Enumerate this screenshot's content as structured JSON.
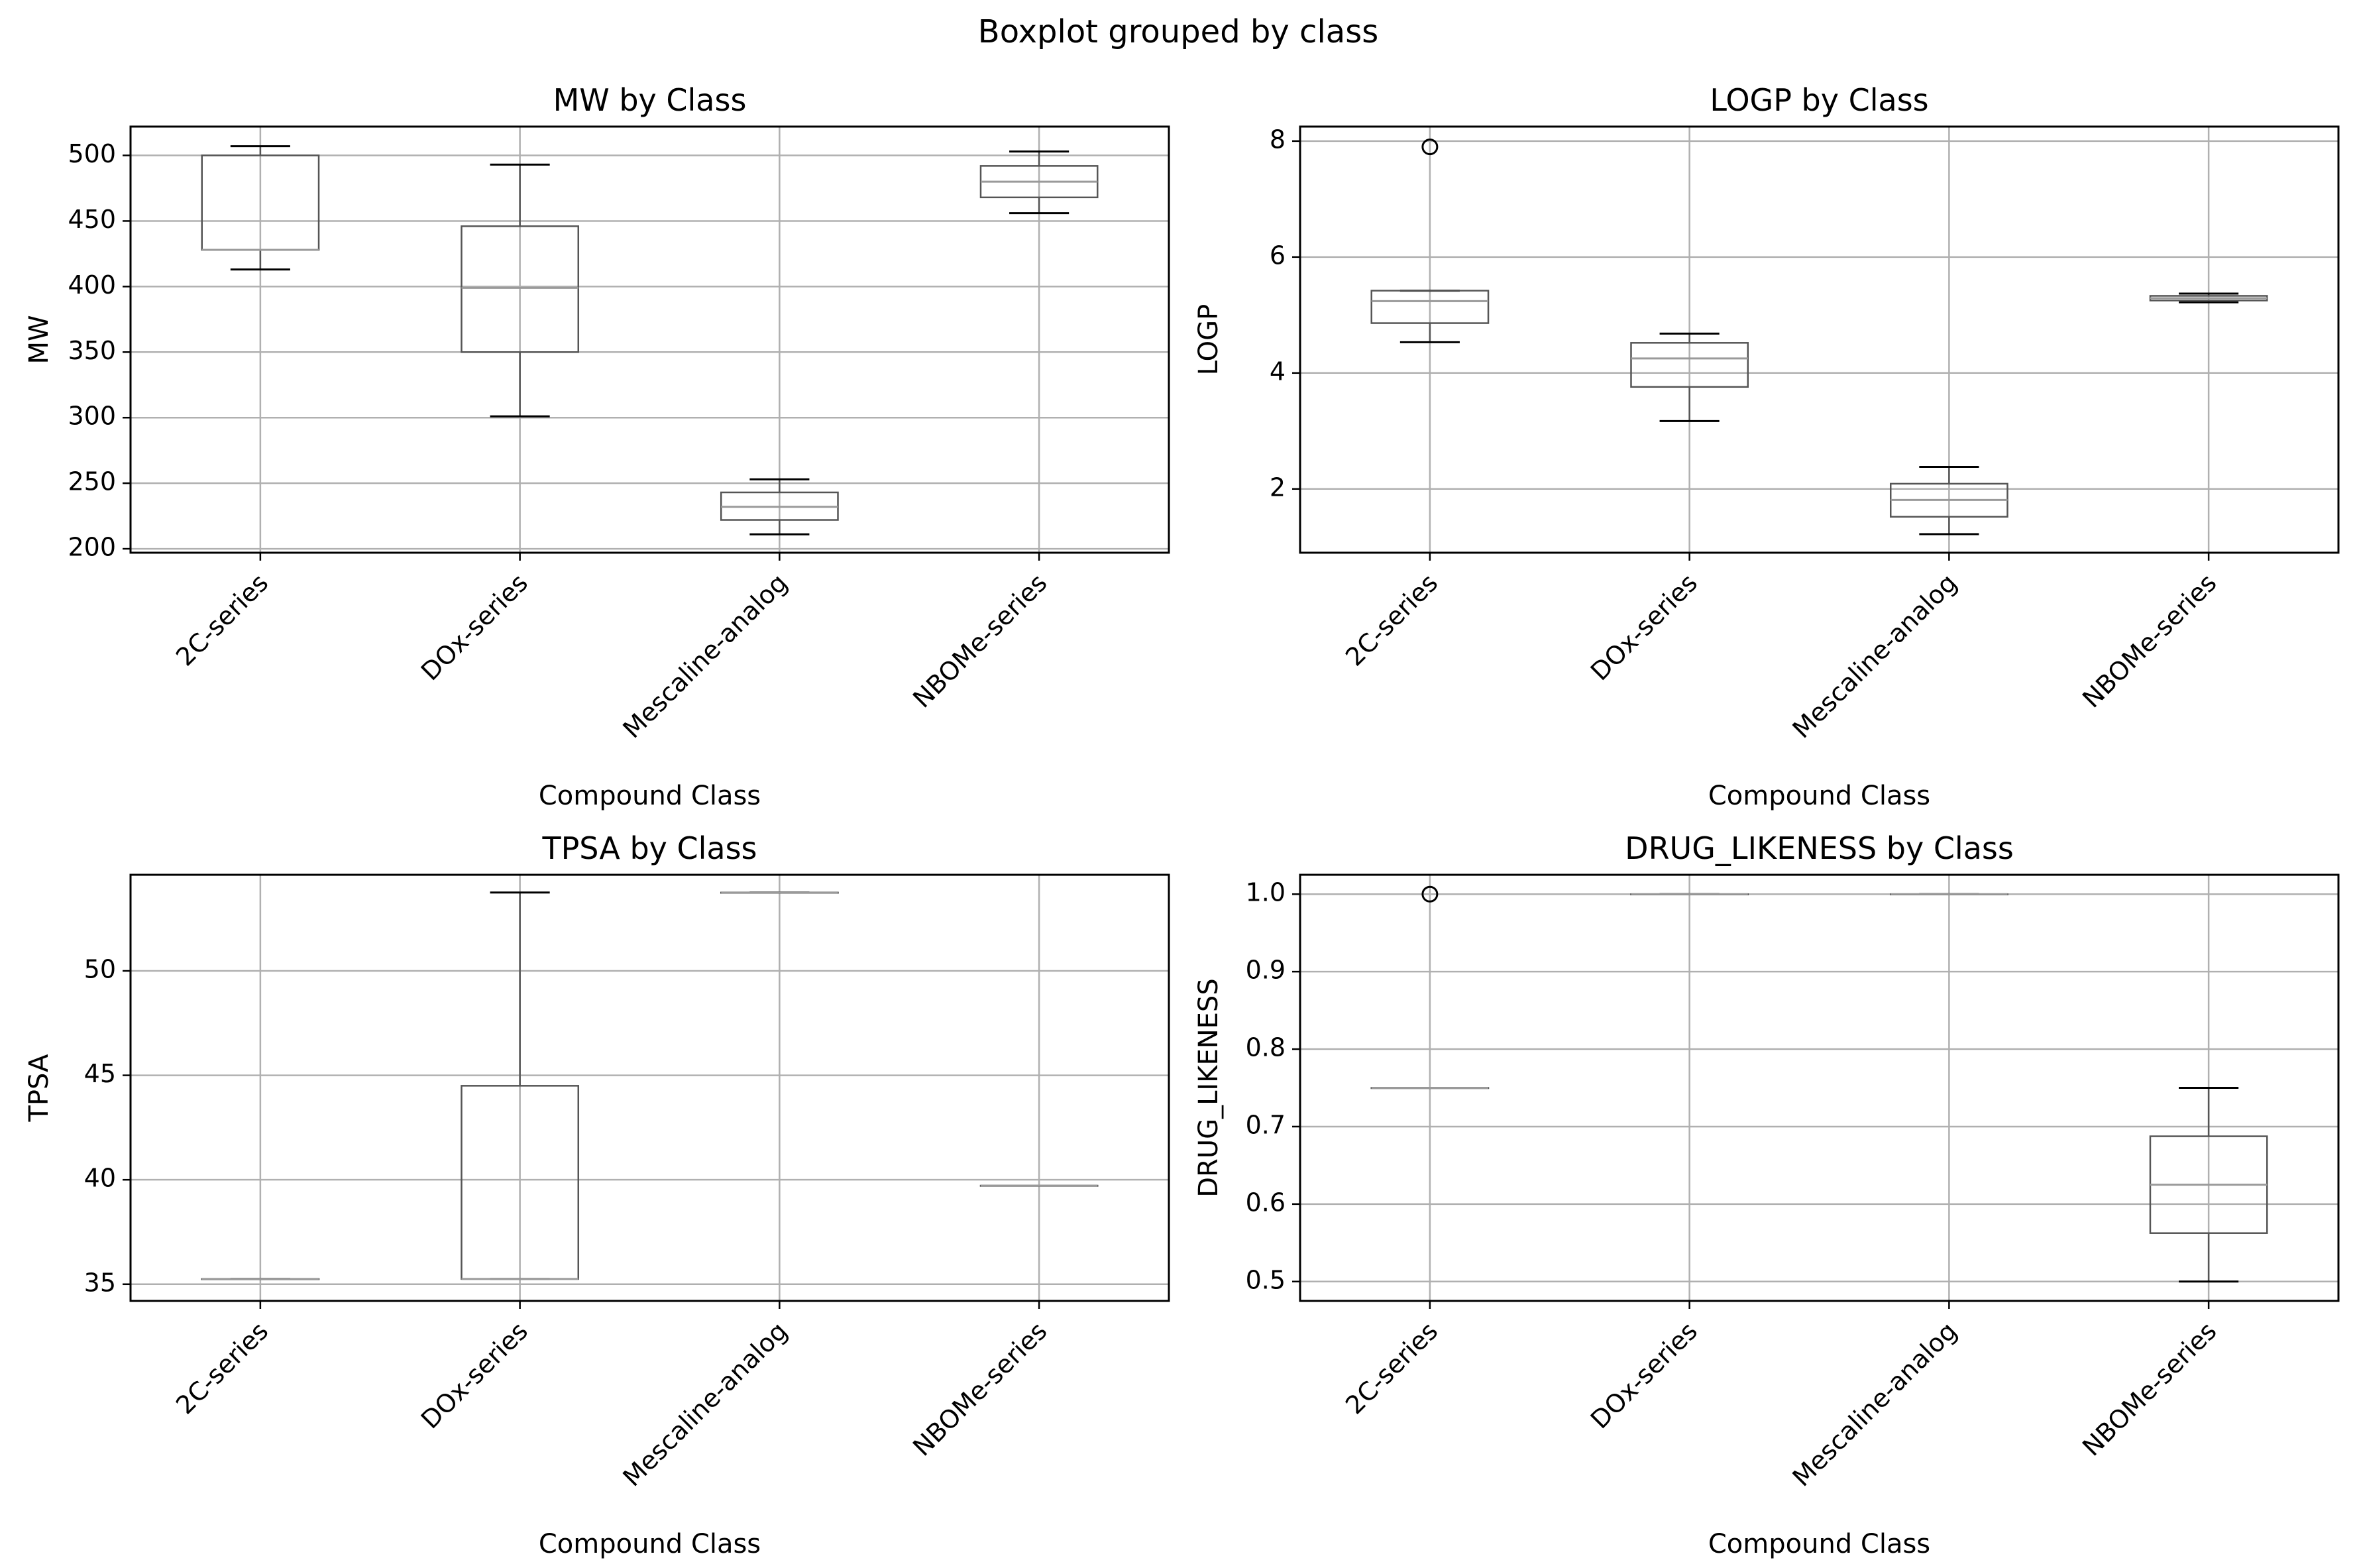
{
  "figure": {
    "suptitle": "Boxplot grouped by class"
  },
  "chart_data": [
    {
      "type": "box",
      "title": "MW by Class",
      "xlabel": "Compound Class",
      "ylabel": "MW",
      "categories": [
        "2C-series",
        "DOx-series",
        "Mescaline-analog",
        "NBOMe-series"
      ],
      "ylim": [
        197,
        522
      ],
      "yticks": [
        200,
        250,
        300,
        350,
        400,
        450,
        500
      ],
      "grid": true,
      "boxes": [
        {
          "whislo": 413,
          "q1": 428,
          "med": 428,
          "q3": 500,
          "whishi": 507,
          "fliers": []
        },
        {
          "whislo": 301,
          "q1": 350,
          "med": 399,
          "q3": 446,
          "whishi": 493,
          "fliers": []
        },
        {
          "whislo": 211,
          "q1": 222,
          "med": 232,
          "q3": 243,
          "whishi": 253,
          "fliers": []
        },
        {
          "whislo": 456,
          "q1": 468,
          "med": 480,
          "q3": 492,
          "whishi": 503,
          "fliers": []
        }
      ]
    },
    {
      "type": "box",
      "title": "LOGP by Class",
      "xlabel": "Compound Class",
      "ylabel": "LOGP",
      "categories": [
        "2C-series",
        "DOx-series",
        "Mescaline-analog",
        "NBOMe-series"
      ],
      "ylim": [
        0.9,
        8.25
      ],
      "yticks": [
        2,
        4,
        6,
        8
      ],
      "grid": true,
      "boxes": [
        {
          "whislo": 4.53,
          "q1": 4.86,
          "med": 5.24,
          "q3": 5.42,
          "whishi": 5.42,
          "fliers": [
            7.9
          ]
        },
        {
          "whislo": 3.17,
          "q1": 3.76,
          "med": 4.25,
          "q3": 4.52,
          "whishi": 4.68,
          "fliers": []
        },
        {
          "whislo": 1.22,
          "q1": 1.52,
          "med": 1.81,
          "q3": 2.09,
          "whishi": 2.38,
          "fliers": []
        },
        {
          "whislo": 5.22,
          "q1": 5.25,
          "med": 5.29,
          "q3": 5.33,
          "whishi": 5.37,
          "fliers": []
        }
      ]
    },
    {
      "type": "box",
      "title": "TPSA by Class",
      "xlabel": "Compound Class",
      "ylabel": "TPSA",
      "categories": [
        "2C-series",
        "DOx-series",
        "Mescaline-analog",
        "NBOMe-series"
      ],
      "ylim": [
        34.2,
        54.6
      ],
      "yticks": [
        35,
        40,
        45,
        50
      ],
      "grid": true,
      "boxes": [
        {
          "whislo": 35.25,
          "q1": 35.25,
          "med": 35.25,
          "q3": 35.25,
          "whishi": 35.25,
          "fliers": []
        },
        {
          "whislo": 35.25,
          "q1": 35.25,
          "med": 35.25,
          "q3": 44.5,
          "whishi": 53.75,
          "fliers": []
        },
        {
          "whislo": 53.75,
          "q1": 53.75,
          "med": 53.75,
          "q3": 53.75,
          "whishi": 53.75,
          "fliers": []
        },
        {
          "whislo": 39.72,
          "q1": 39.72,
          "med": 39.72,
          "q3": 39.72,
          "whishi": 39.72,
          "fliers": []
        }
      ]
    },
    {
      "type": "box",
      "title": "DRUG_LIKENESS by Class",
      "xlabel": "Compound Class",
      "ylabel": "DRUG_LIKENESS",
      "categories": [
        "2C-series",
        "DOx-series",
        "Mescaline-analog",
        "NBOMe-series"
      ],
      "ylim": [
        0.475,
        1.025
      ],
      "yticks": [
        0.5,
        0.6,
        0.7,
        0.8,
        0.9,
        1.0
      ],
      "tickFormat": "1",
      "grid": true,
      "boxes": [
        {
          "whislo": 0.75,
          "q1": 0.75,
          "med": 0.75,
          "q3": 0.75,
          "whishi": 0.75,
          "fliers": [
            1.0
          ]
        },
        {
          "whislo": 1.0,
          "q1": 1.0,
          "med": 1.0,
          "q3": 1.0,
          "whishi": 1.0,
          "fliers": []
        },
        {
          "whislo": 1.0,
          "q1": 1.0,
          "med": 1.0,
          "q3": 1.0,
          "whishi": 1.0,
          "fliers": []
        },
        {
          "whislo": 0.5,
          "q1": 0.5625,
          "med": 0.625,
          "q3": 0.6875,
          "whishi": 0.75,
          "fliers": []
        }
      ]
    }
  ]
}
